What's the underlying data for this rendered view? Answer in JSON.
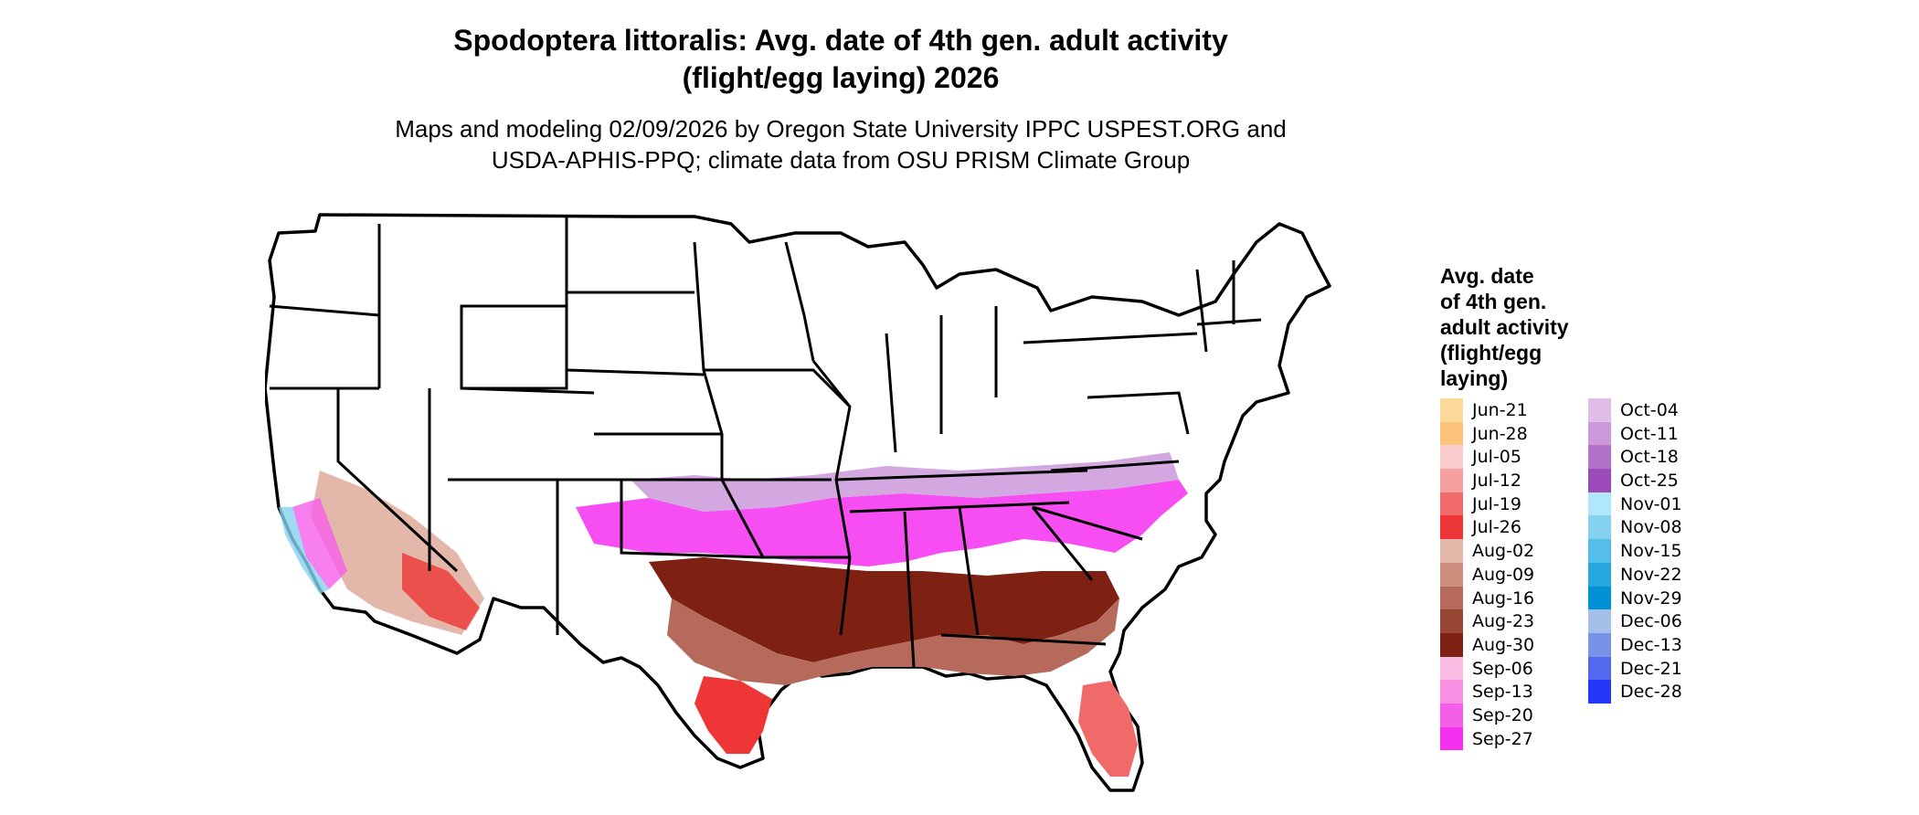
{
  "title_line1": "Spodoptera littoralis: Avg. date of 4th gen. adult activity",
  "title_line2": "(flight/egg laying) 2026",
  "subtitle_line1": "Maps and modeling 02/09/2026 by Oregon State University IPPC USPEST.ORG and",
  "subtitle_line2": "USDA-APHIS-PPQ; climate data from OSU PRISM Climate Group",
  "legend": {
    "title_lines": [
      "Avg. date",
      "of 4th gen.",
      "adult activity",
      "(flight/egg",
      "laying)"
    ],
    "col1": [
      {
        "label": "Jun-21",
        "color": "#fdd999"
      },
      {
        "label": "Jun-28",
        "color": "#fdc27b"
      },
      {
        "label": "Jul-05",
        "color": "#f8cccc"
      },
      {
        "label": "Jul-12",
        "color": "#f5a0a0"
      },
      {
        "label": "Jul-19",
        "color": "#f16a6a"
      },
      {
        "label": "Jul-26",
        "color": "#ee3636"
      },
      {
        "label": "Aug-02",
        "color": "#e4b7ab"
      },
      {
        "label": "Aug-09",
        "color": "#cd8e7e"
      },
      {
        "label": "Aug-16",
        "color": "#b56a5b"
      },
      {
        "label": "Aug-23",
        "color": "#984534"
      },
      {
        "label": "Aug-30",
        "color": "#7e2113"
      },
      {
        "label": "Sep-06",
        "color": "#fbbde3"
      },
      {
        "label": "Sep-13",
        "color": "#f990e4"
      },
      {
        "label": "Sep-20",
        "color": "#f55fe8"
      },
      {
        "label": "Sep-27",
        "color": "#f52ff0"
      }
    ],
    "col2": [
      {
        "label": "Oct-04",
        "color": "#e1bde9"
      },
      {
        "label": "Oct-11",
        "color": "#cb98db"
      },
      {
        "label": "Oct-18",
        "color": "#b371c9"
      },
      {
        "label": "Oct-25",
        "color": "#9b4ab9"
      },
      {
        "label": "Nov-01",
        "color": "#b0e7fb"
      },
      {
        "label": "Nov-08",
        "color": "#84d1f0"
      },
      {
        "label": "Nov-15",
        "color": "#55bde9"
      },
      {
        "label": "Nov-22",
        "color": "#26a8df"
      },
      {
        "label": "Nov-29",
        "color": "#0092d5"
      },
      {
        "label": "Dec-06",
        "color": "#a4bfea"
      },
      {
        "label": "Dec-13",
        "color": "#7892e8"
      },
      {
        "label": "Dec-21",
        "color": "#5268ef"
      },
      {
        "label": "Dec-28",
        "color": "#2338fb"
      }
    ]
  }
}
